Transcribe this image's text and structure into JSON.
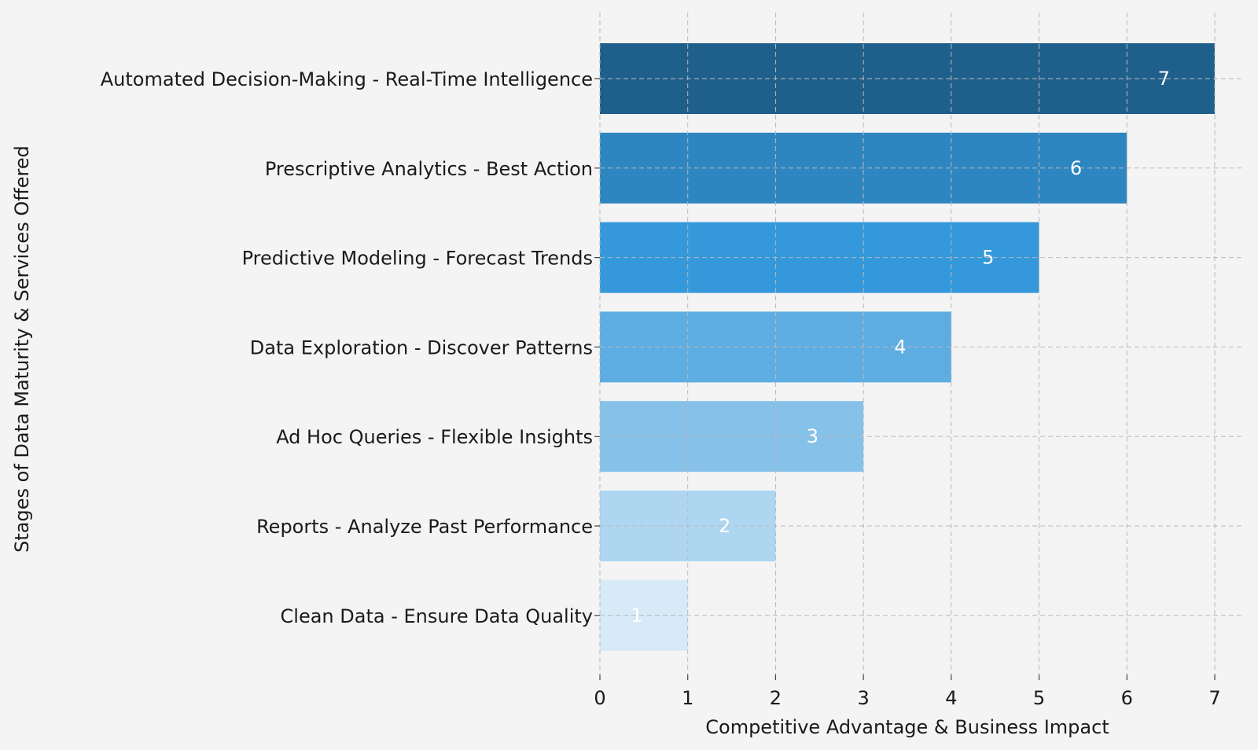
{
  "chart_data": {
    "type": "bar",
    "orientation": "horizontal",
    "categories": [
      "Automated Decision-Making - Real-Time Intelligence",
      "Prescriptive Analytics - Best Action",
      "Predictive Modeling - Forecast Trends",
      "Data Exploration - Discover Patterns",
      "Ad Hoc Queries - Flexible Insights",
      "Reports - Analyze Past Performance",
      "Clean Data - Ensure Data Quality"
    ],
    "values": [
      7,
      6,
      5,
      4,
      3,
      2,
      1
    ],
    "bar_labels": [
      "7",
      "6",
      "5",
      "4",
      "3",
      "2",
      "1"
    ],
    "colors": [
      "#1f5f8b",
      "#2e86c1",
      "#3498db",
      "#5dade2",
      "#85c1e9",
      "#aed6f1",
      "#d6eaf8"
    ],
    "title": "",
    "xlabel": "Competitive Advantage & Business Impact",
    "ylabel": "Stages of Data Maturity & Services Offered",
    "xlim": [
      0,
      7
    ],
    "xticks": [
      "0",
      "1",
      "2",
      "3",
      "4",
      "5",
      "6",
      "7"
    ],
    "grid": true,
    "background": "#f4f4f4"
  }
}
